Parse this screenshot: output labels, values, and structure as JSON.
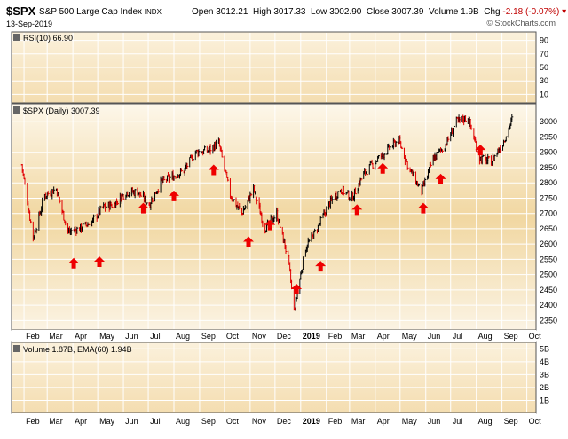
{
  "header": {
    "symbol": "$SPX",
    "description": "S&P 500 Large Cap Index",
    "exchange": "INDX",
    "date": "13-Sep-2019",
    "open_label": "Open",
    "open": "3012.21",
    "high_label": "High",
    "high": "3017.33",
    "low_label": "Low",
    "low": "3002.90",
    "close_label": "Close",
    "close": "3007.39",
    "volume_label": "Volume",
    "volume": "1.9B",
    "chg_label": "Chg",
    "chg": "-2.18 (-0.07%)",
    "watermark": "© StockCharts.com"
  },
  "panels": {
    "rsi_legend": "RSI(10) 66.90",
    "price_legend": "$SPX (Daily) 3007.39",
    "volume_legend": "Volume 1.87B, EMA(60) 1.94B"
  },
  "colors": {
    "panel_bg_top": "#fbf4e6",
    "panel_bg_mid": "#f2d9a5",
    "up_bar": "#000000",
    "down_bar": "#e00000",
    "arrow": "#ee0000",
    "grid": "#ffffff"
  },
  "chart_data": [
    {
      "type": "line",
      "name": "RSI(10)",
      "ylim": [
        0,
        100
      ],
      "ticks": [
        "90",
        "70",
        "50",
        "30",
        "10"
      ]
    },
    {
      "type": "bar",
      "name": "$SPX (Daily)",
      "ylim": [
        2325,
        3050
      ],
      "ticks": [
        "3000",
        "2950",
        "2900",
        "2850",
        "2800",
        "2750",
        "2700",
        "2650",
        "2600",
        "2550",
        "2500",
        "2450",
        "2400",
        "2350"
      ],
      "x_ticks": [
        "Feb",
        "Mar",
        "Apr",
        "May",
        "Jun",
        "Jul",
        "Aug",
        "Sep",
        "Oct",
        "Nov",
        "Dec",
        "2019",
        "Feb",
        "Mar",
        "Apr",
        "May",
        "Jun",
        "Jul",
        "Aug",
        "Sep",
        "Oct"
      ],
      "x": [
        "2018-01-29",
        "2018-02-12",
        "2018-02-26",
        "2018-03-12",
        "2018-03-26",
        "2018-04-09",
        "2018-04-23",
        "2018-05-07",
        "2018-05-21",
        "2018-06-04",
        "2018-06-18",
        "2018-07-02",
        "2018-07-16",
        "2018-07-30",
        "2018-08-13",
        "2018-08-27",
        "2018-09-10",
        "2018-09-24",
        "2018-10-08",
        "2018-10-22",
        "2018-11-05",
        "2018-11-19",
        "2018-12-03",
        "2018-12-17",
        "2018-12-24",
        "2019-01-07",
        "2019-01-21",
        "2019-02-04",
        "2019-02-18",
        "2019-03-04",
        "2019-03-18",
        "2019-04-01",
        "2019-04-15",
        "2019-04-29",
        "2019-05-13",
        "2019-05-27",
        "2019-06-10",
        "2019-06-24",
        "2019-07-08",
        "2019-07-22",
        "2019-08-05",
        "2019-08-19",
        "2019-09-02",
        "2019-09-13"
      ],
      "close": [
        2860,
        2620,
        2760,
        2780,
        2640,
        2650,
        2670,
        2720,
        2730,
        2770,
        2770,
        2730,
        2800,
        2820,
        2840,
        2900,
        2905,
        2930,
        2760,
        2700,
        2780,
        2650,
        2700,
        2550,
        2380,
        2590,
        2650,
        2730,
        2780,
        2750,
        2830,
        2870,
        2905,
        2940,
        2840,
        2770,
        2880,
        2920,
        3000,
        3015,
        2880,
        2870,
        2930,
        3007
      ]
    },
    {
      "type": "bar",
      "name": "Volume",
      "ylim": [
        0,
        5.5
      ],
      "ticks": [
        "5B",
        "4B",
        "3B",
        "2B",
        "1B"
      ]
    }
  ]
}
